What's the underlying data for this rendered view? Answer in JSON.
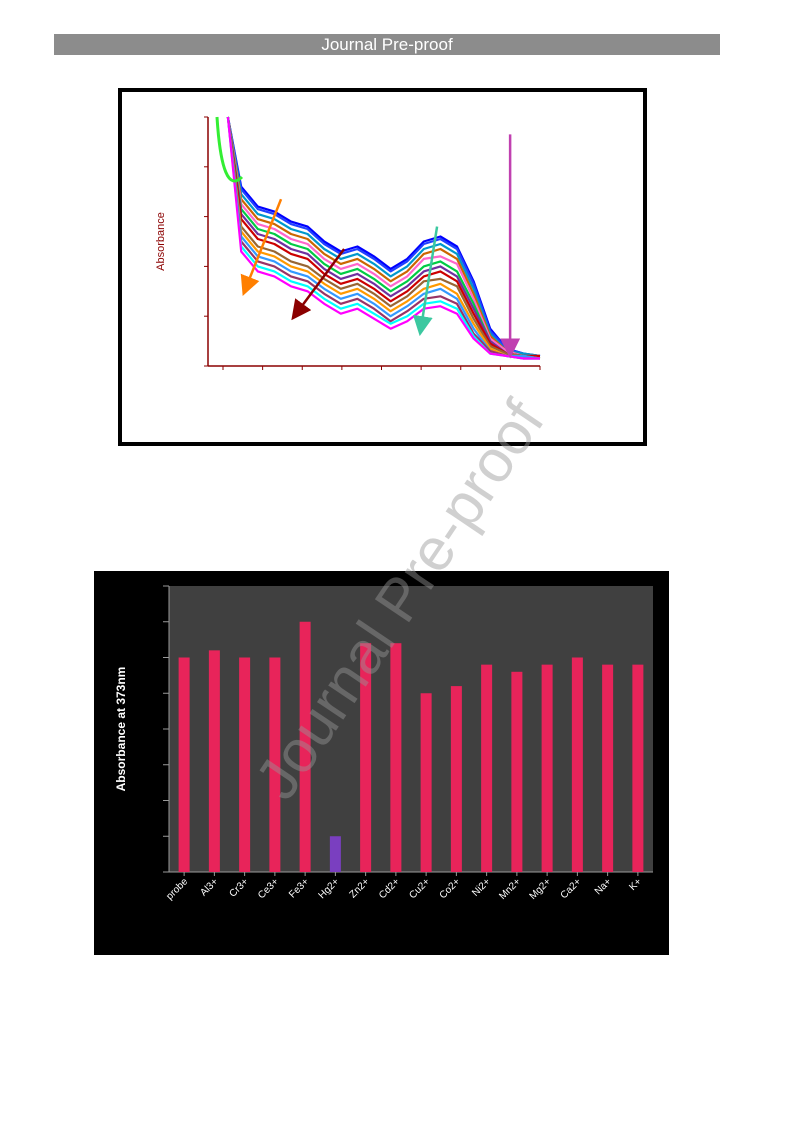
{
  "header": {
    "banner_text": "Journal Pre-proof"
  },
  "watermark": {
    "text": "Journal Pre-proof"
  },
  "chart_data": [
    {
      "type": "line",
      "title": "",
      "xlabel": "",
      "ylabel": "Absorbance",
      "xlim": [
        0,
        100
      ],
      "ylim": [
        0,
        100
      ],
      "grid": false,
      "x": [
        6,
        10,
        15,
        20,
        25,
        30,
        35,
        40,
        45,
        50,
        55,
        60,
        65,
        70,
        75,
        80,
        85,
        90,
        95,
        100
      ],
      "series": [
        {
          "values": [
            100,
            72,
            64,
            62,
            58,
            56,
            50,
            46,
            48,
            44,
            39,
            43,
            50,
            52,
            48,
            34,
            15,
            7,
            5,
            4
          ]
        },
        {
          "values": [
            100,
            71,
            63,
            61,
            57,
            55,
            49,
            45,
            47,
            43,
            38,
            42,
            49,
            51,
            47,
            33,
            14,
            7,
            5,
            4
          ]
        },
        {
          "values": [
            100,
            69,
            61,
            59,
            55,
            53,
            47,
            43,
            45,
            41,
            36,
            40,
            47,
            49,
            45,
            31,
            13,
            6,
            5,
            4
          ]
        },
        {
          "values": [
            100,
            67,
            59,
            57,
            53,
            51,
            45,
            41,
            43,
            39,
            34,
            38,
            45,
            47,
            43,
            29,
            12,
            6,
            4,
            4
          ]
        },
        {
          "values": [
            100,
            65,
            57,
            55,
            51,
            49,
            43,
            39,
            41,
            37,
            32,
            36,
            43,
            44,
            41,
            27,
            11,
            6,
            4,
            4
          ]
        },
        {
          "values": [
            100,
            63,
            55,
            53,
            49,
            47,
            41,
            37,
            39,
            35,
            30,
            34,
            40,
            42,
            38,
            25,
            10,
            5,
            4,
            4
          ]
        },
        {
          "values": [
            100,
            61,
            53,
            51,
            47,
            45,
            39,
            35,
            37,
            33,
            28,
            32,
            38,
            40,
            36,
            23,
            10,
            5,
            4,
            4
          ]
        },
        {
          "values": [
            100,
            59,
            51,
            49,
            45,
            43,
            37,
            33,
            35,
            31,
            26,
            30,
            36,
            38,
            34,
            21,
            9,
            5,
            4,
            4
          ]
        },
        {
          "values": [
            100,
            56,
            48,
            46,
            42,
            40,
            35,
            31,
            33,
            29,
            24,
            28,
            34,
            35,
            32,
            19,
            8,
            5,
            4,
            3
          ]
        },
        {
          "values": [
            100,
            54,
            46,
            44,
            40,
            38,
            33,
            29,
            31,
            27,
            22,
            26,
            31,
            33,
            29,
            17,
            7,
            4,
            4,
            3
          ]
        },
        {
          "values": [
            100,
            52,
            44,
            42,
            38,
            36,
            31,
            27,
            29,
            25,
            20,
            24,
            29,
            31,
            27,
            15,
            6,
            4,
            4,
            3
          ]
        },
        {
          "values": [
            100,
            50,
            42,
            40,
            36,
            34,
            29,
            25,
            27,
            23,
            18,
            22,
            27,
            28,
            25,
            13,
            6,
            4,
            3,
            3
          ]
        },
        {
          "values": [
            100,
            48,
            40,
            38,
            34,
            32,
            27,
            23,
            25,
            21,
            17,
            20,
            25,
            26,
            23,
            12,
            5,
            4,
            3,
            3
          ]
        },
        {
          "values": [
            100,
            46,
            38,
            36,
            32,
            30,
            25,
            21,
            23,
            19,
            15,
            18,
            23,
            24,
            21,
            11,
            5,
            4,
            3,
            3
          ]
        }
      ],
      "arrows": [
        {
          "color": "#ff7f00",
          "from": [
            22,
            67
          ],
          "to": [
            11,
            30
          ]
        },
        {
          "color": "#8b0000",
          "from": [
            41,
            47
          ],
          "to": [
            26,
            20
          ]
        },
        {
          "color": "#3cc8a0",
          "from": [
            69,
            56
          ],
          "to": [
            64,
            14
          ]
        },
        {
          "color": "#c040b0",
          "from": [
            91,
            93
          ],
          "to": [
            91,
            5
          ]
        }
      ]
    },
    {
      "type": "bar",
      "title": "",
      "xlabel": "",
      "ylabel": "Absorbance at 373nm",
      "ylim": [
        0,
        8
      ],
      "categories": [
        "probe",
        "Al3+",
        "Cr3+",
        "Ce3+",
        "Fe3+",
        "Hg2+",
        "Zn2+",
        "Cd2+",
        "Cu2+",
        "Co2+",
        "Ni2+",
        "Mn2+",
        "Mg2+",
        "Ca2+",
        "Na+",
        "K+"
      ],
      "values": [
        6.0,
        6.2,
        6.0,
        6.0,
        7.0,
        1.0,
        6.4,
        6.4,
        5.0,
        5.2,
        5.8,
        5.6,
        5.8,
        6.0,
        5.8,
        5.8
      ],
      "colors": [
        "#e8245a",
        "#e8245a",
        "#e8245a",
        "#e8245a",
        "#e8245a",
        "#7a3fc0",
        "#e8245a",
        "#e8245a",
        "#e8245a",
        "#e8245a",
        "#e8245a",
        "#e8245a",
        "#e8245a",
        "#e8245a",
        "#e8245a",
        "#e8245a"
      ]
    }
  ]
}
